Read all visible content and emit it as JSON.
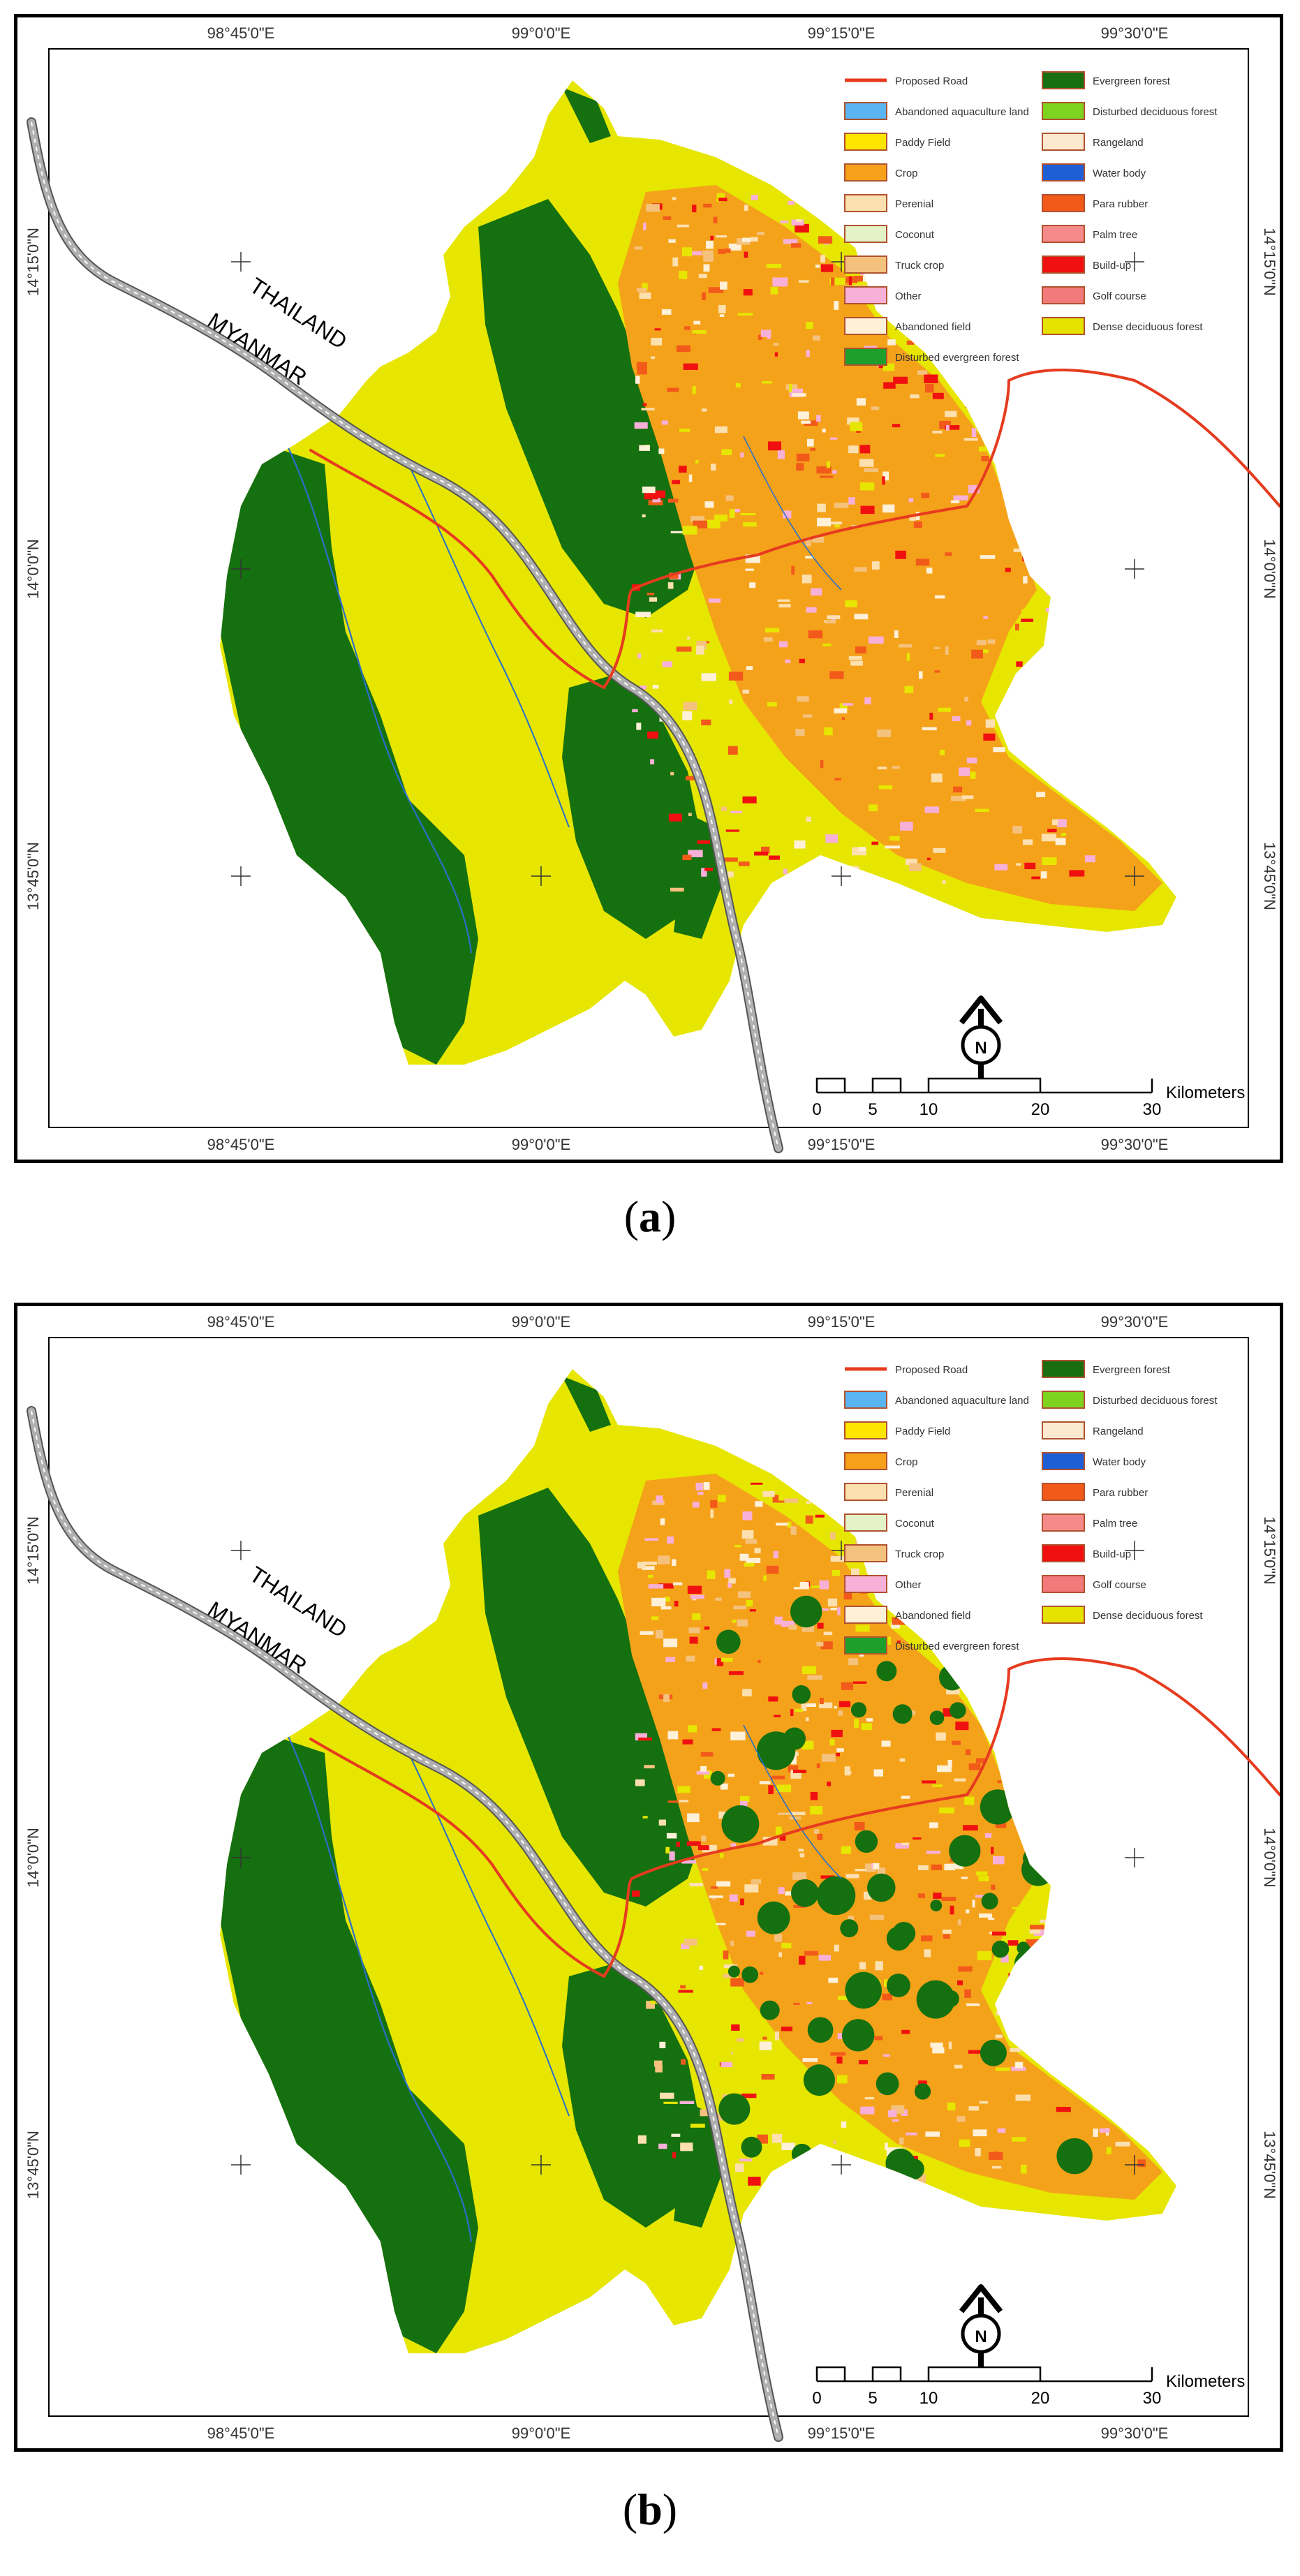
{
  "panels": [
    {
      "id": "a",
      "caption_open": "(",
      "caption_letter": "a",
      "caption_close": ")",
      "variant": "a"
    },
    {
      "id": "b",
      "caption_open": "(",
      "caption_letter": "b",
      "caption_close": ")",
      "variant": "b"
    }
  ],
  "axes": {
    "top_ticks": [
      "98°45'0\"E",
      "99°0'0\"E",
      "99°15'0\"E",
      "99°30'0\"E"
    ],
    "bottom_ticks": [
      "98°45'0\"E",
      "99°0'0\"E",
      "99°15'0\"E",
      "99°30'0\"E"
    ],
    "left_ticks": [
      "14°15'0\"N",
      "14°0'0\"N",
      "13°45'0\"N"
    ],
    "right_ticks": [
      "14°15'0\"N",
      "14°0'0\"N",
      "13°45'0\"N"
    ]
  },
  "country_labels": {
    "thailand": "THAILAND",
    "myanmar": "MYANMAR"
  },
  "north_label": "N",
  "scale": {
    "ticks": [
      "0",
      "5",
      "10",
      "20",
      "30"
    ],
    "unit": "Kilometers"
  },
  "legend": {
    "left": [
      {
        "label": "Proposed Road",
        "color": "#e63b1f",
        "type": "line"
      },
      {
        "label": "Abandoned aquaculture land",
        "color": "#59b4f0"
      },
      {
        "label": "Paddy Field",
        "color": "#ffe600"
      },
      {
        "label": "Crop",
        "color": "#f7a11a"
      },
      {
        "label": "Perenial",
        "color": "#fde0b0"
      },
      {
        "label": "Coconut",
        "color": "#e4f2c8"
      },
      {
        "label": "Truck crop",
        "color": "#f5c27e"
      },
      {
        "label": "Other",
        "color": "#f7b0d8"
      },
      {
        "label": "Abandoned field",
        "color": "#fff0d8"
      },
      {
        "label": "Disturbed evergreen forest",
        "color": "#1e9e2c"
      }
    ],
    "right": [
      {
        "label": "Evergreen forest",
        "color": "#1a6e12"
      },
      {
        "label": "Disturbed deciduous forest",
        "color": "#7ed321"
      },
      {
        "label": "Rangeland",
        "color": "#fde9cf"
      },
      {
        "label": "Water body",
        "color": "#1f5fd6"
      },
      {
        "label": "Para rubber",
        "color": "#f25a1a"
      },
      {
        "label": "Palm tree",
        "color": "#f58a8a"
      },
      {
        "label": "Build-up",
        "color": "#f01010"
      },
      {
        "label": "Golf course",
        "color": "#f27a7a"
      },
      {
        "label": "Dense deciduous forest",
        "color": "#e5e200"
      }
    ]
  },
  "colors": {
    "dense_deciduous": "#e6e600",
    "evergreen": "#15700f",
    "crop": "#f5a21b",
    "perenial": "#fde0b0",
    "buildup": "#f01010",
    "road": "#e63b1f",
    "river": "#2a6fc9",
    "border": "#9a9a9a"
  }
}
